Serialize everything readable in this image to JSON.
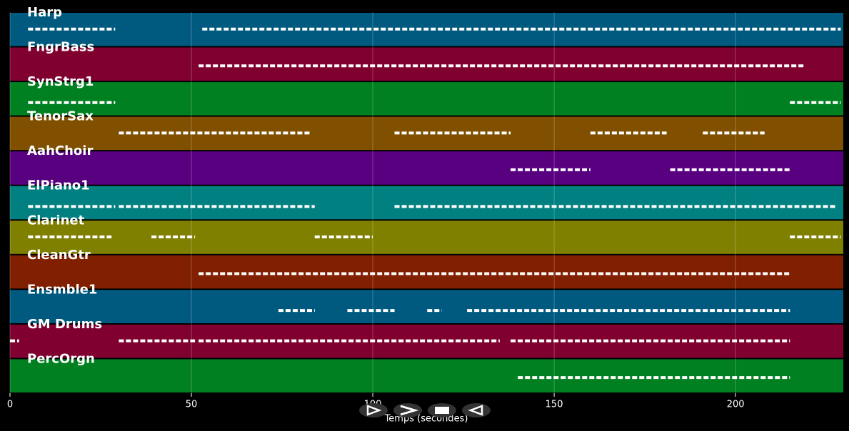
{
  "chart_data": {
    "type": "timeline",
    "xlabel": "Temps (secondes)",
    "xlim": [
      0,
      229.7
    ],
    "xticks": [
      0,
      50,
      100,
      150,
      200
    ],
    "grid": true,
    "tracks": [
      {
        "name": "Harp",
        "color": "#005a80",
        "segments": [
          [
            5,
            29
          ],
          [
            53,
            229
          ]
        ]
      },
      {
        "name": "FngrBass",
        "color": "#800030",
        "segments": [
          [
            52,
            219
          ]
        ]
      },
      {
        "name": "SynStrg1",
        "color": "#008020",
        "segments": [
          [
            5,
            29
          ],
          [
            215,
            229
          ]
        ]
      },
      {
        "name": "TenorSax",
        "color": "#805000",
        "segments": [
          [
            30,
            83
          ],
          [
            106,
            138
          ],
          [
            160,
            181
          ],
          [
            191,
            208
          ]
        ]
      },
      {
        "name": "AahChoir",
        "color": "#580080",
        "segments": [
          [
            138,
            160
          ],
          [
            182,
            215
          ]
        ]
      },
      {
        "name": "ElPiano1",
        "color": "#008080",
        "segments": [
          [
            5,
            29
          ],
          [
            30,
            84
          ],
          [
            106,
            228
          ]
        ]
      },
      {
        "name": "Clarinet",
        "color": "#808000",
        "segments": [
          [
            5,
            28
          ],
          [
            39,
            51
          ],
          [
            84,
            100
          ],
          [
            215,
            229
          ]
        ]
      },
      {
        "name": "CleanGtr",
        "color": "#802000",
        "segments": [
          [
            52,
            215
          ]
        ]
      },
      {
        "name": "Ensmble1",
        "color": "#005a80",
        "segments": [
          [
            74,
            84
          ],
          [
            93,
            106
          ],
          [
            115,
            119
          ],
          [
            126,
            215
          ]
        ]
      },
      {
        "name": "GM Drums",
        "color": "#800030",
        "segments": [
          [
            0,
            2.5
          ],
          [
            30,
            51
          ],
          [
            52,
            135
          ],
          [
            138,
            215
          ]
        ]
      },
      {
        "name": "PercOrgn",
        "color": "#008020",
        "segments": [
          [
            140,
            215
          ]
        ]
      }
    ]
  }
}
